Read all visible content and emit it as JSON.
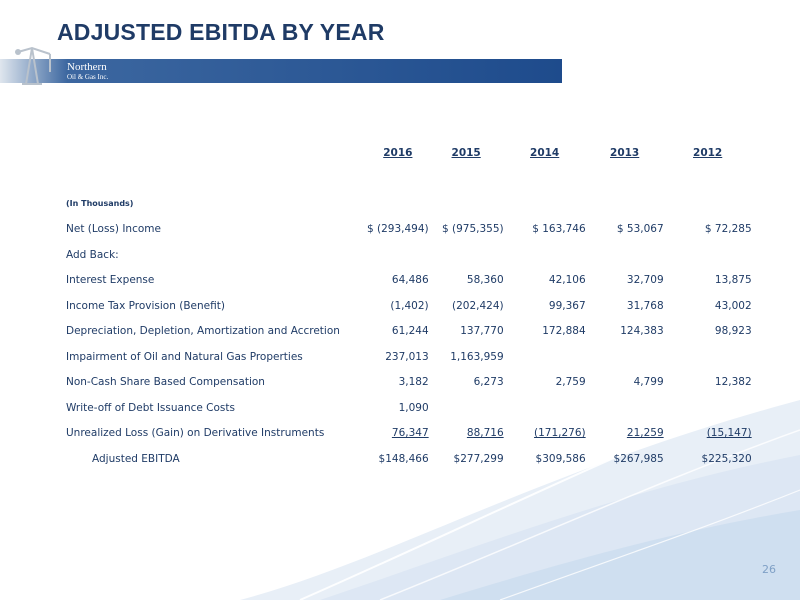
{
  "title": "ADJUSTED EBITDA BY YEAR",
  "logo": {
    "line1": "Northern",
    "line2": "Oil & Gas Inc."
  },
  "table": {
    "years": [
      "2016",
      "2015",
      "2014",
      "2013",
      "2012"
    ],
    "units_label": "(In Thousands)",
    "rows": [
      {
        "label": "Net (Loss) Income",
        "values": [
          "$ (293,494)",
          "$ (975,355)",
          "$  163,746",
          "$  53,067",
          "$  72,285"
        ]
      },
      {
        "label": "Add Back:",
        "values": [
          "",
          "",
          "",
          "",
          ""
        ]
      },
      {
        "label": "Interest Expense",
        "values": [
          "64,486",
          "58,360",
          "42,106",
          "32,709",
          "13,875"
        ]
      },
      {
        "label": "Income Tax Provision (Benefit)",
        "values": [
          "(1,402)",
          "(202,424)",
          "99,367",
          "31,768",
          "43,002"
        ]
      },
      {
        "label": "Depreciation, Depletion, Amortization and Accretion",
        "values": [
          "61,244",
          "137,770",
          "172,884",
          "124,383",
          "98,923"
        ]
      },
      {
        "label": "Impairment of Oil and Natural Gas Properties",
        "values": [
          "237,013",
          "1,163,959",
          "",
          "",
          ""
        ]
      },
      {
        "label": "Non-Cash Share Based Compensation",
        "values": [
          "3,182",
          "6,273",
          "2,759",
          "4,799",
          "12,382"
        ]
      },
      {
        "label": "Write-off of Debt Issuance Costs",
        "values": [
          "1,090",
          "",
          "",
          "",
          ""
        ]
      },
      {
        "label": "Unrealized Loss (Gain) on Derivative Instruments",
        "values": [
          "76,347",
          "88,716",
          "(171,276)",
          "21,259",
          "(15,147)"
        ]
      },
      {
        "label": "Adjusted EBITDA",
        "values": [
          "$148,466",
          "$277,299",
          "$309,586",
          "$267,985",
          "$225,320"
        ]
      }
    ]
  },
  "page_number": "26",
  "colors": {
    "title": "#1f3b66",
    "bar": "#1e4b8c",
    "text": "#1f3b66",
    "page_number": "#7fa0c6"
  }
}
